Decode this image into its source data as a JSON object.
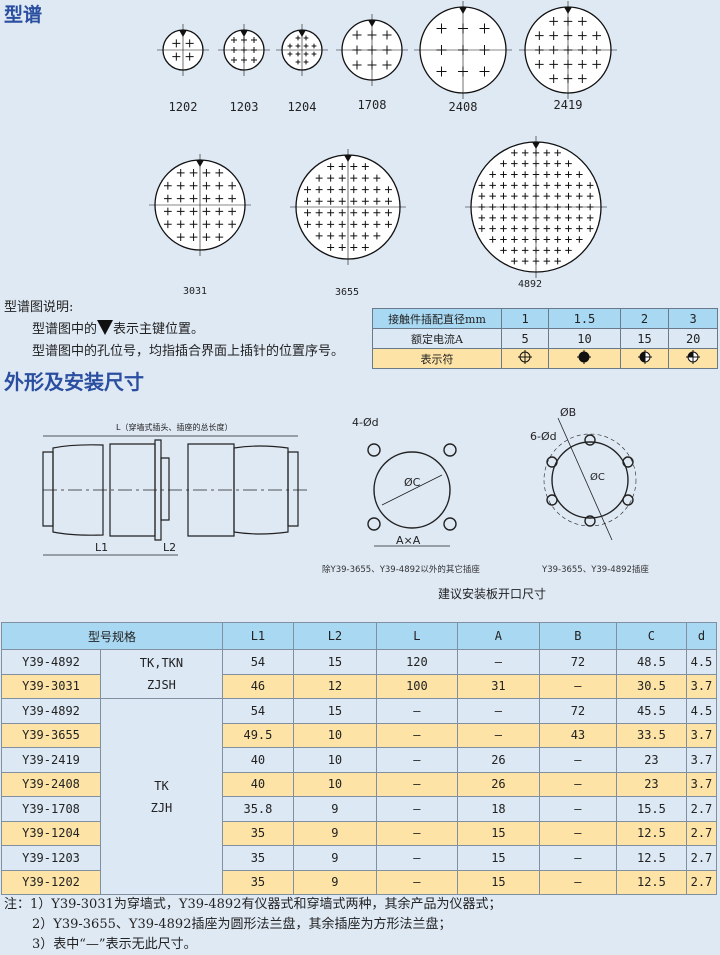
{
  "section_spectrum": {
    "title": "型谱"
  },
  "connectors": [
    "1202",
    "1203",
    "1204",
    "1708",
    "2408",
    "2419",
    "3031",
    "3655",
    "4892"
  ],
  "spectrum_notes": {
    "heading": "型谱图说明:",
    "line1_pre": "型谱图中的",
    "line1_post": "表示主键位置。",
    "line2": "型谱图中的孔位号，均指插合界面上插针的位置序号。"
  },
  "legend_table": {
    "rows": [
      {
        "label": "接触件插配直径mm",
        "values": [
          "1",
          "1.5",
          "2",
          "3"
        ]
      },
      {
        "label": "额定电流A",
        "values": [
          "5",
          "10",
          "15",
          "20"
        ]
      },
      {
        "label": "表示符",
        "values": [
          "circle-cross-icon",
          "filled-circle-icon",
          "half-filled-circle-icon",
          "quarter-filled-circle-icon"
        ]
      }
    ]
  },
  "section_dimensions": {
    "title": "外形及安装尺寸"
  },
  "drawing": {
    "length_label": "L（穿墙式插头、插座的总长度）",
    "l1": "L1",
    "l2": "L2",
    "square_holes": "4-Ød",
    "square_dia": "ØC",
    "square_axa": "A×A",
    "round_holes": "6-Ød",
    "round_b": "ØB",
    "round_dia": "ØC",
    "caption_square": "除Y39-3655、Y39-4892以外的其它插座",
    "caption_round": "Y39-3655、Y39-4892插座",
    "caption_main": "建议安装板开口尺寸"
  },
  "spec_table": {
    "headers": [
      "型号规格",
      "L1",
      "L2",
      "L",
      "A",
      "B",
      "C",
      "d"
    ],
    "groups": [
      {
        "line1": "TK,TKN",
        "line2": "ZJSH"
      },
      {
        "line1": "TK",
        "line2": "ZJH"
      }
    ],
    "rows": [
      [
        "Y39-4892",
        "54",
        "15",
        "120",
        "—",
        "72",
        "48.5",
        "4.5"
      ],
      [
        "Y39-3031",
        "46",
        "12",
        "100",
        "31",
        "—",
        "30.5",
        "3.7"
      ],
      [
        "Y39-4892",
        "54",
        "15",
        "—",
        "—",
        "72",
        "45.5",
        "4.5"
      ],
      [
        "Y39-3655",
        "49.5",
        "10",
        "—",
        "—",
        "43",
        "33.5",
        "3.7"
      ],
      [
        "Y39-2419",
        "40",
        "10",
        "—",
        "26",
        "—",
        "23",
        "3.7"
      ],
      [
        "Y39-2408",
        "40",
        "10",
        "—",
        "26",
        "—",
        "23",
        "3.7"
      ],
      [
        "Y39-1708",
        "35.8",
        "9",
        "—",
        "18",
        "—",
        "15.5",
        "2.7"
      ],
      [
        "Y39-1204",
        "35",
        "9",
        "—",
        "15",
        "—",
        "12.5",
        "2.7"
      ],
      [
        "Y39-1203",
        "35",
        "9",
        "—",
        "15",
        "—",
        "12.5",
        "2.7"
      ],
      [
        "Y39-1202",
        "35",
        "9",
        "—",
        "15",
        "—",
        "12.5",
        "2.7"
      ]
    ]
  },
  "footnotes": [
    "注：1）Y39-3031为穿墙式，Y39-4892有仪器式和穿墙式两种，其余产品为仪器式；",
    "2）Y39-3655、Y39-4892插座为圆形法兰盘，其余插座为方形法兰盘；",
    "3）表中“—”表示无此尺寸。"
  ],
  "colors": {
    "title": "#2a4ea0",
    "header": "#a9d8f2",
    "row_blue": "#dce8f4",
    "row_yellow": "#fde4a6",
    "background": "#dfe9f4"
  }
}
